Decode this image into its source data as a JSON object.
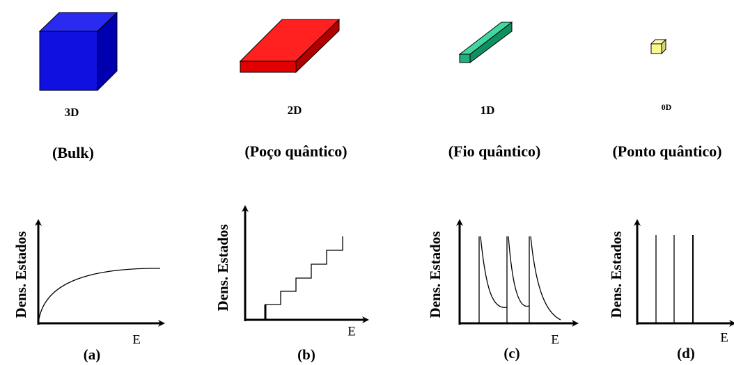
{
  "panels": [
    {
      "dimension": "3D",
      "name": "(Bulk)",
      "y_label": "Dens. Estados",
      "x_label": "E",
      "label": "(a)"
    },
    {
      "dimension": "2D",
      "name": "(Poço quântico)",
      "y_label": "Dens. Estados",
      "x_label": "E",
      "label": "(b)"
    },
    {
      "dimension": "1D",
      "name": "(Fio quântico)",
      "y_label": "Dens. Estados",
      "x_label": "E",
      "label": "(c)"
    },
    {
      "dimension": "0D",
      "name": "(Ponto quântico)",
      "y_label": "Dens. Estados",
      "x_label": "E",
      "label": "(d)"
    }
  ]
}
